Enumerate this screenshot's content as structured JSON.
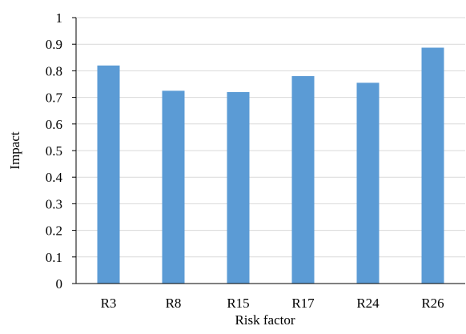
{
  "chart_data": {
    "type": "bar",
    "title": "",
    "xlabel": "Risk factor",
    "ylabel": "Impact",
    "categories": [
      "R3",
      "R8",
      "R15",
      "R17",
      "R24",
      "R26"
    ],
    "values": [
      0.82,
      0.725,
      0.72,
      0.78,
      0.755,
      0.887
    ],
    "ylim": [
      0,
      1
    ],
    "yticks": [
      "0",
      "0.1",
      "0.2",
      "0.3",
      "0.4",
      "0.5",
      "0.6",
      "0.7",
      "0.8",
      "0.9",
      "1"
    ],
    "grid": true,
    "legend": "none",
    "bar_color": "#5B9BD5",
    "grid_color": "#D9D9D9",
    "axis_color": "#000000"
  }
}
